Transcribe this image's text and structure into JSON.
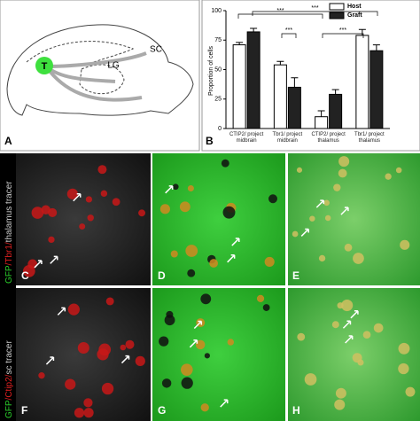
{
  "panel_labels": [
    "A",
    "B",
    "C",
    "D",
    "E",
    "F",
    "G",
    "H"
  ],
  "diagram": {
    "labels": [
      "T",
      "LG",
      "SC"
    ]
  },
  "side_labels": [
    [
      {
        "text": "GFP",
        "color": "#2bd12b"
      },
      {
        "text": "/Tbr1/",
        "color": "#e02020"
      },
      {
        "text": "thalamus tracer",
        "color": "#cccccc"
      }
    ],
    [
      {
        "text": "GFP",
        "color": "#2bd12b"
      },
      {
        "text": "/Ctip2/",
        "color": "#e02020"
      },
      {
        "text": "sc tracer",
        "color": "#cccccc"
      }
    ]
  ],
  "chart_data": {
    "type": "bar",
    "y_label": "Proportion of cells",
    "categories": [
      "CTIP2/ project midbrain",
      "Tbr1/ project midbrain",
      "CTIP2/ project thalamus",
      "Tbr1/ project thalamus"
    ],
    "series": [
      {
        "name": "Host",
        "color": "#ffffff",
        "values": [
          71,
          54,
          10,
          79
        ],
        "errors": [
          2,
          3,
          5,
          5
        ]
      },
      {
        "name": "Graft",
        "color": "#222222",
        "values": [
          82,
          35,
          29,
          66
        ],
        "errors": [
          3,
          8,
          4,
          5
        ]
      }
    ],
    "ylim": [
      0,
      100
    ],
    "yticks": [
      0,
      25,
      50,
      75,
      100
    ],
    "legend": "top-right",
    "annotations": [
      {
        "text": "***"
      },
      {
        "text": "***"
      },
      {
        "text": "***"
      },
      {
        "text": "***"
      }
    ]
  }
}
